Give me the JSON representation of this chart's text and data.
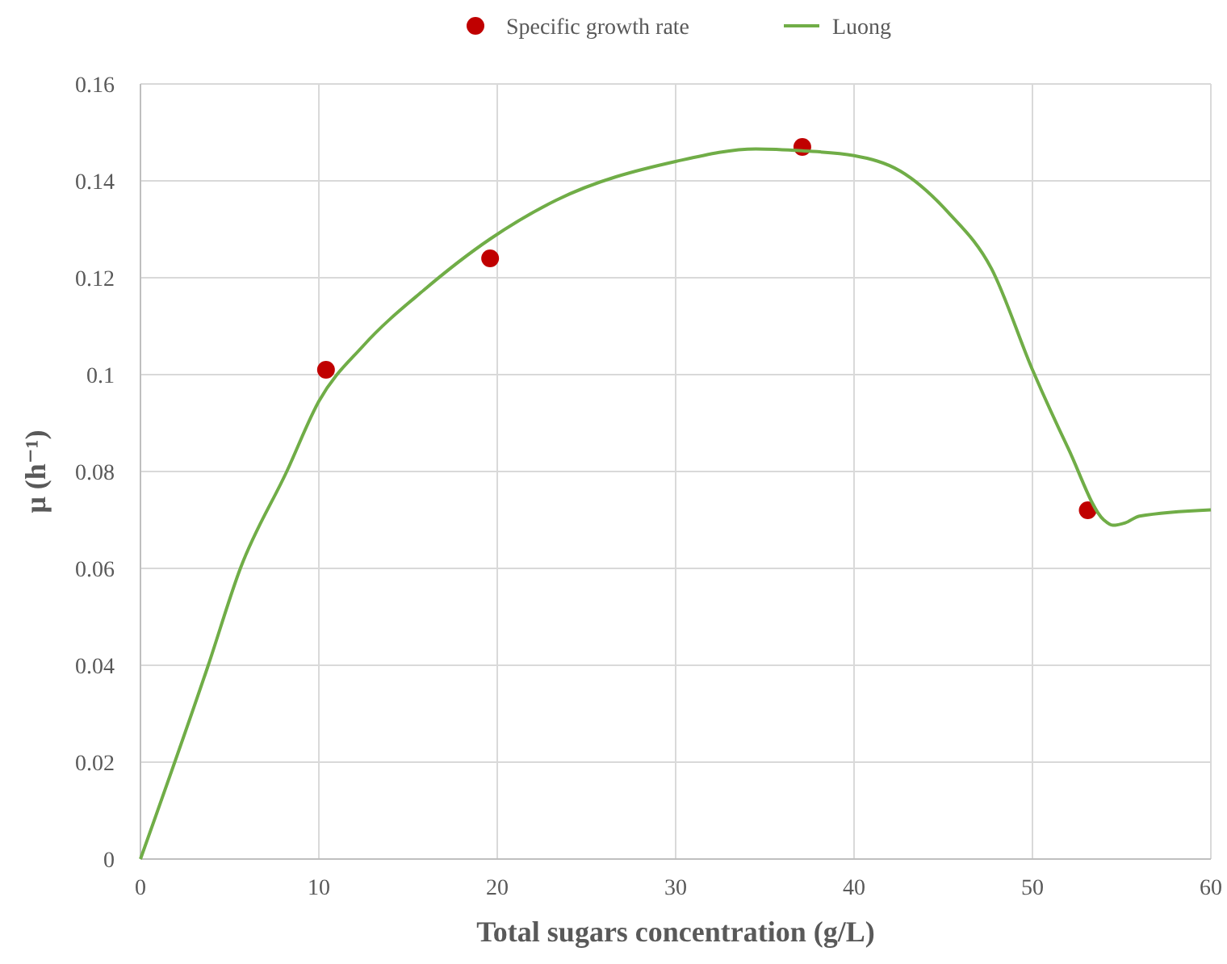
{
  "chart_data": {
    "type": "scatter",
    "xlabel": "Total sugars concentration (g/L)",
    "ylabel": "μ (h⁻¹)",
    "xlim": [
      0,
      60
    ],
    "xticks": [
      0,
      10,
      20,
      30,
      40,
      50,
      60
    ],
    "ylim": [
      0,
      0.16
    ],
    "yticks": [
      0,
      0.02,
      0.04,
      0.06,
      0.08,
      0.1,
      0.12,
      0.14,
      0.16
    ],
    "grid": true,
    "legend": "top",
    "series": [
      {
        "name": "Specific growth rate",
        "marker": "circle",
        "color": "#c00000",
        "x": [
          10.4,
          19.6,
          37.1,
          53.1
        ],
        "values": [
          0.101,
          0.124,
          0.147,
          0.072
        ]
      },
      {
        "name": "Luong",
        "type": "line",
        "marker": "none",
        "line_style": "solid",
        "color": "#70ad47",
        "x": [
          0,
          3.8,
          5.6,
          8.2,
          10,
          12.5,
          15.9,
          19.6,
          23.3,
          30,
          34.5,
          37.1,
          40,
          42.6,
          45.3,
          47.7,
          50,
          52,
          54,
          54.5,
          55.2,
          56,
          60
        ],
        "values": [
          0,
          0.04,
          0.06,
          0.08,
          0.0945,
          0.106,
          0.1175,
          0.128,
          0.136,
          0.144,
          0.1466,
          0.1462,
          0.1452,
          0.142,
          0.1334,
          0.1219,
          0.101,
          0.0848,
          0.07,
          0.0689,
          0.0694,
          0.0708,
          0.0721
        ]
      }
    ]
  }
}
